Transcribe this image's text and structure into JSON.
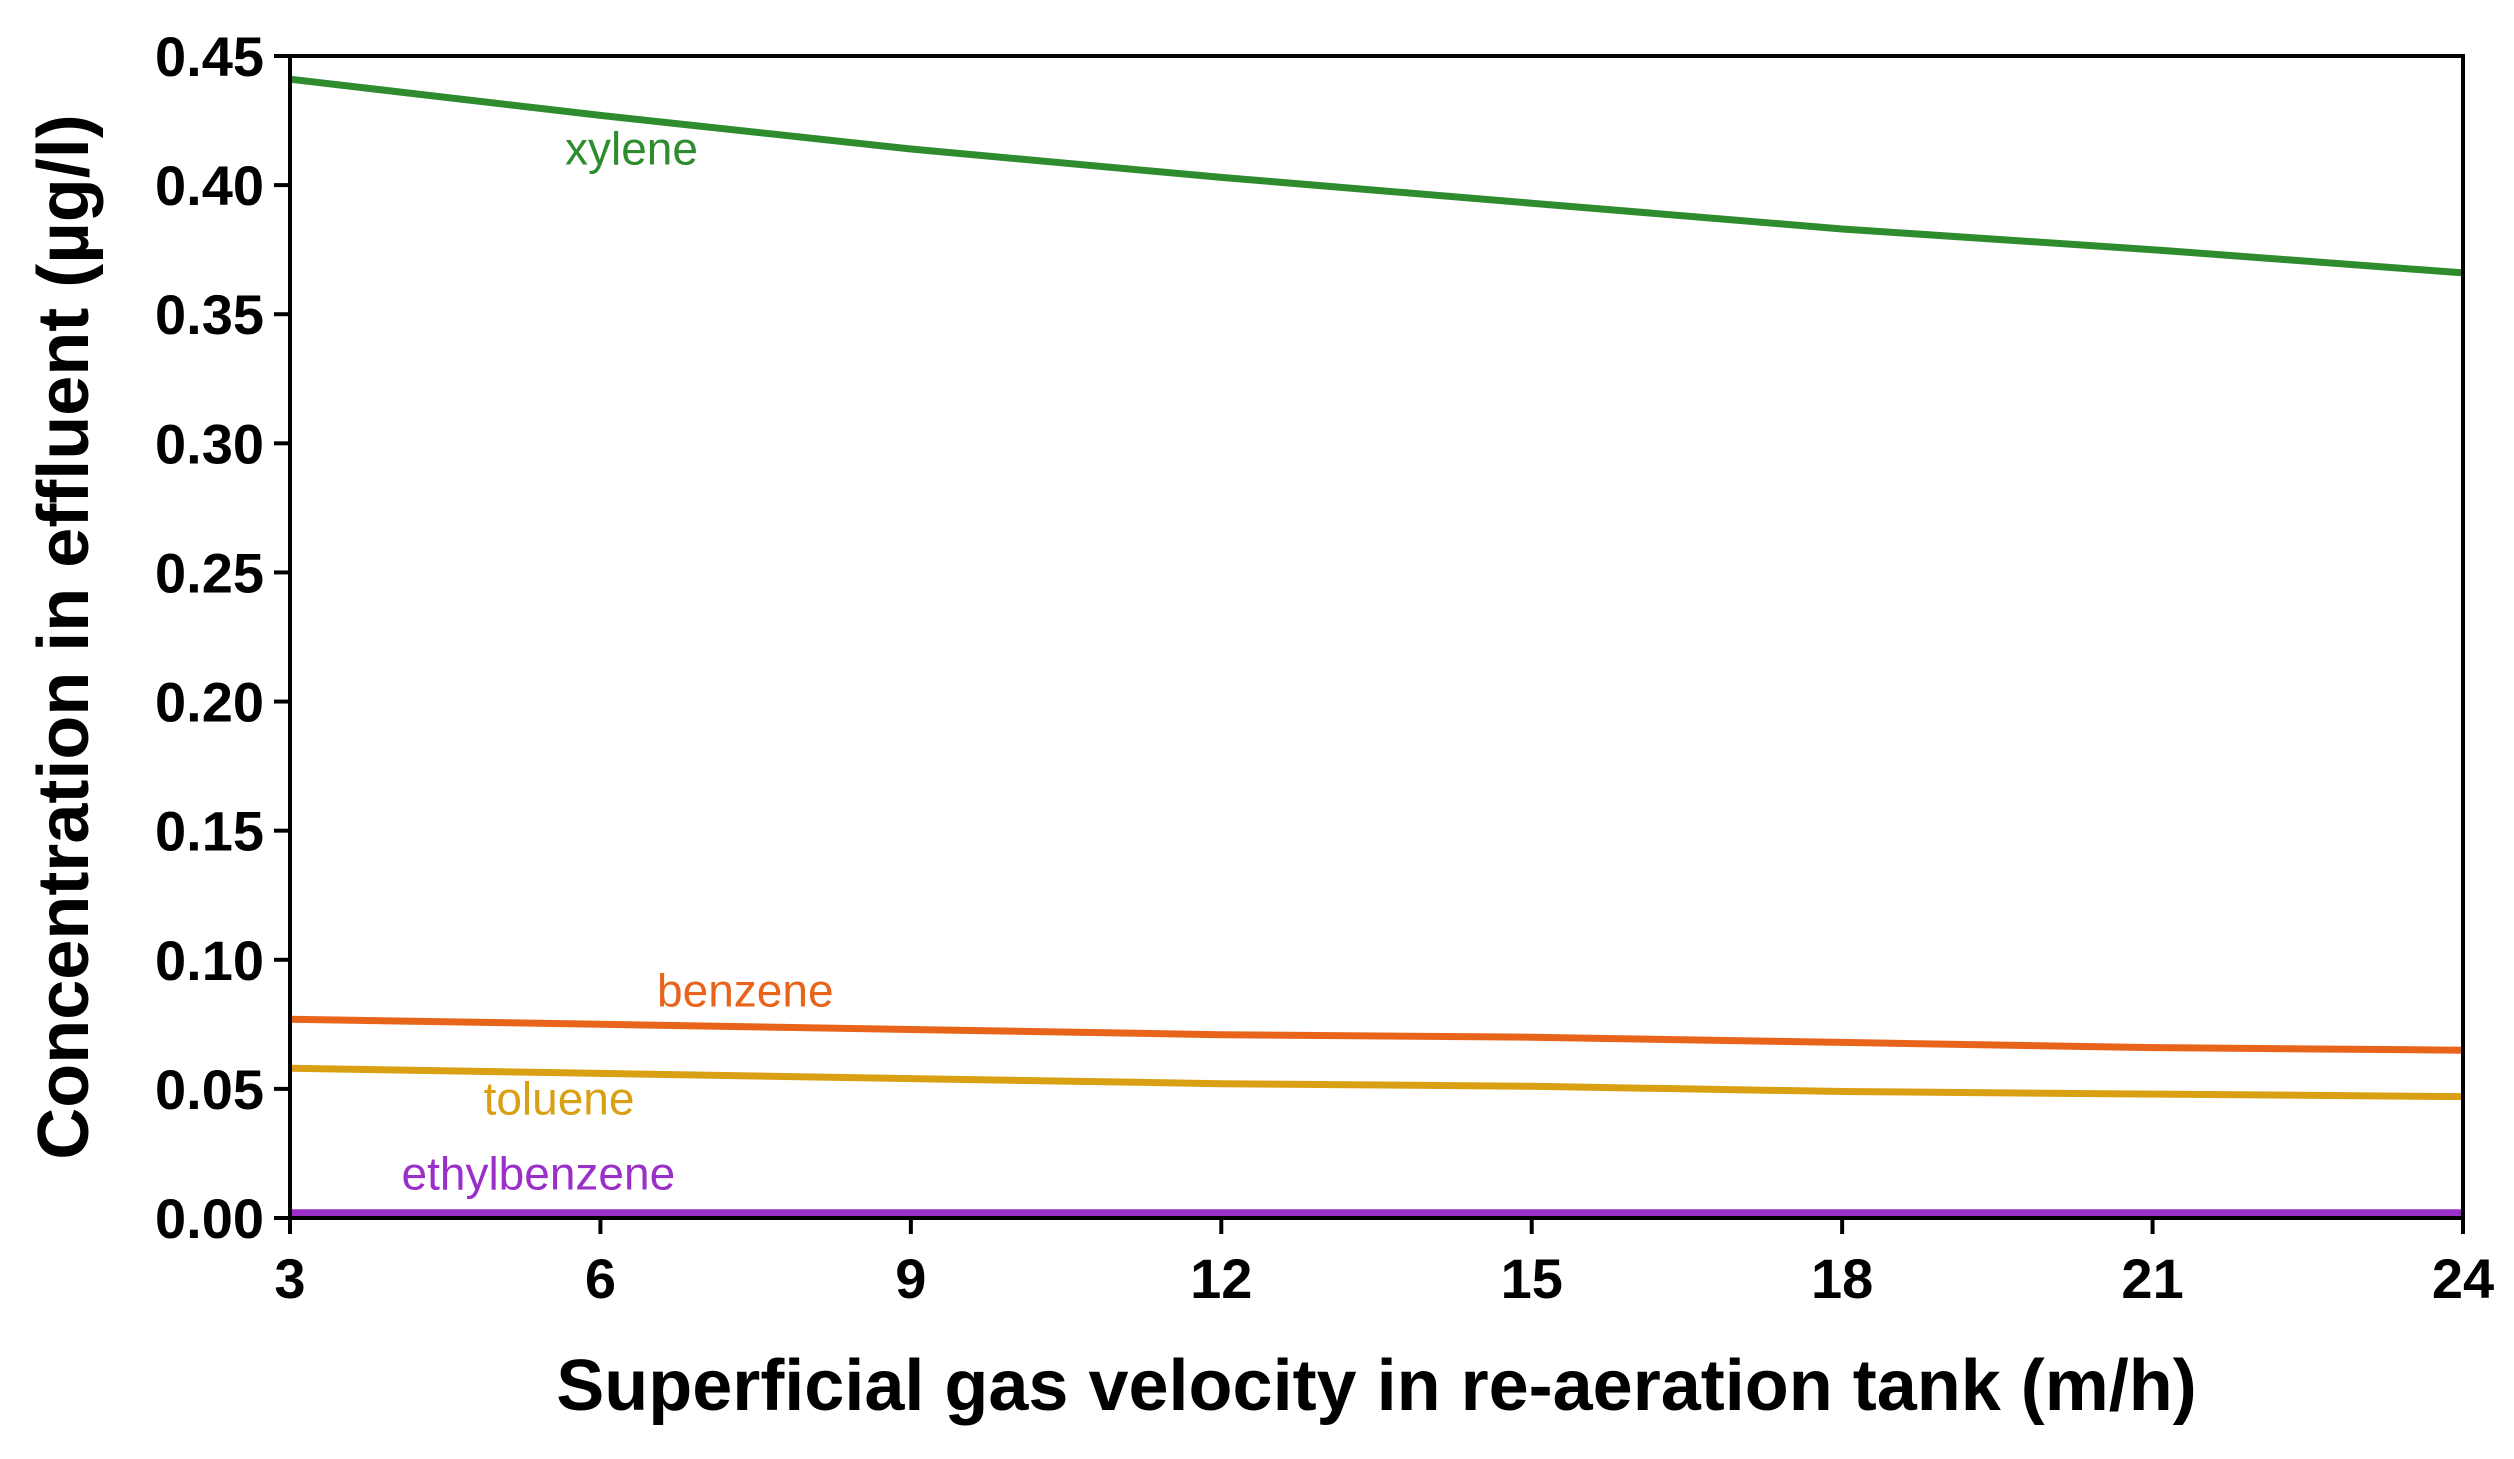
{
  "chart_data": {
    "type": "line",
    "title": "",
    "xlabel": "Superficial gas velocity in re-aeration tank (m/h)",
    "ylabel": "Concentration in effluent (µg/l)",
    "xlim": [
      3,
      24
    ],
    "ylim": [
      0,
      0.45
    ],
    "xticks": [
      3,
      6,
      9,
      12,
      15,
      18,
      21,
      24
    ],
    "xtick_labels": [
      "3",
      "6",
      "9",
      "12",
      "15",
      "18",
      "21",
      "24"
    ],
    "yticks": [
      0,
      0.05,
      0.1,
      0.15,
      0.2,
      0.25,
      0.3,
      0.35,
      0.4,
      0.45
    ],
    "ytick_labels": [
      "0.00",
      "0.05",
      "0.10",
      "0.15",
      "0.20",
      "0.25",
      "0.30",
      "0.35",
      "0.40",
      "0.45"
    ],
    "grid": false,
    "legend": "inline labels",
    "x": [
      3,
      6,
      9,
      12,
      15,
      18,
      21,
      24
    ],
    "series": [
      {
        "name": "xylene",
        "color": "#2e8b2e",
        "values": [
          0.441,
          0.427,
          0.414,
          0.403,
          0.393,
          0.383,
          0.375,
          0.366
        ],
        "label_x": 6.3,
        "label_y": 0.408
      },
      {
        "name": "benzene",
        "color": "#e8641a",
        "values": [
          0.077,
          0.075,
          0.073,
          0.071,
          0.07,
          0.068,
          0.066,
          0.065
        ],
        "label_x": 7.4,
        "label_y": 0.082
      },
      {
        "name": "toluene",
        "color": "#d9a014",
        "values": [
          0.058,
          0.056,
          0.054,
          0.052,
          0.051,
          0.049,
          0.048,
          0.047
        ],
        "label_x": 5.6,
        "label_y": 0.04
      },
      {
        "name": "ethylbenzene",
        "color": "#9b30c8",
        "values": [
          0.002,
          0.002,
          0.002,
          0.002,
          0.002,
          0.002,
          0.002,
          0.002
        ],
        "label_x": 5.4,
        "label_y": 0.011
      }
    ]
  }
}
